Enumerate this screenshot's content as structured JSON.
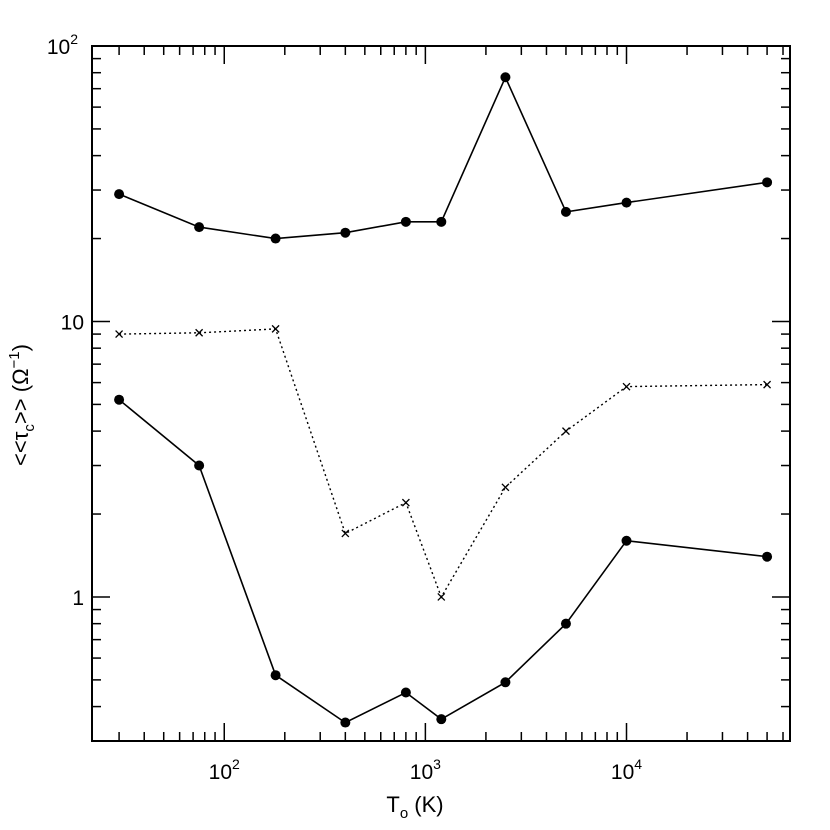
{
  "chart_data": {
    "type": "line",
    "xlabel_main": "T",
    "xlabel_sub": "o",
    "xlabel_unit": " (K)",
    "ylabel": "<<τ",
    "ylabel_sub": "c",
    "ylabel_tail": ">> (Ω",
    "ylabel_sup": "−1",
    "ylabel_close": ")",
    "x_scale": "log",
    "y_scale": "log",
    "xlim": [
      22,
      65000
    ],
    "ylim": [
      0.3,
      100
    ],
    "x_ticks": [
      {
        "base": "10",
        "exp": "2",
        "value": 100
      },
      {
        "base": "10",
        "exp": "3",
        "value": 1000
      },
      {
        "base": "10",
        "exp": "4",
        "value": 10000
      }
    ],
    "y_ticks": [
      {
        "base": "1",
        "exp": "",
        "value": 1
      },
      {
        "base": "10",
        "exp": "",
        "value": 10
      },
      {
        "base": "10",
        "exp": "2",
        "value": 100
      }
    ],
    "series": [
      {
        "style": "solid",
        "marker": "dot",
        "x": [
          30,
          75,
          180,
          400,
          800,
          1200,
          2500,
          5000,
          10000,
          50000
        ],
        "y": [
          29,
          22,
          20,
          21,
          23,
          23,
          77,
          25,
          27,
          32
        ]
      },
      {
        "style": "dotted",
        "marker": "cross",
        "x": [
          30,
          75,
          180,
          400,
          800,
          1200,
          2500,
          5000,
          10000,
          50000
        ],
        "y": [
          9.0,
          9.1,
          9.4,
          1.7,
          2.2,
          1.0,
          2.5,
          4.0,
          5.8,
          5.9
        ]
      },
      {
        "style": "solid",
        "marker": "dot",
        "x": [
          30,
          75,
          180,
          400,
          800,
          1200,
          2500,
          5000,
          10000,
          50000
        ],
        "y": [
          5.2,
          3.0,
          0.52,
          0.35,
          0.45,
          0.36,
          0.49,
          0.8,
          1.6,
          1.4
        ]
      }
    ],
    "grid": false,
    "legend": "none"
  }
}
